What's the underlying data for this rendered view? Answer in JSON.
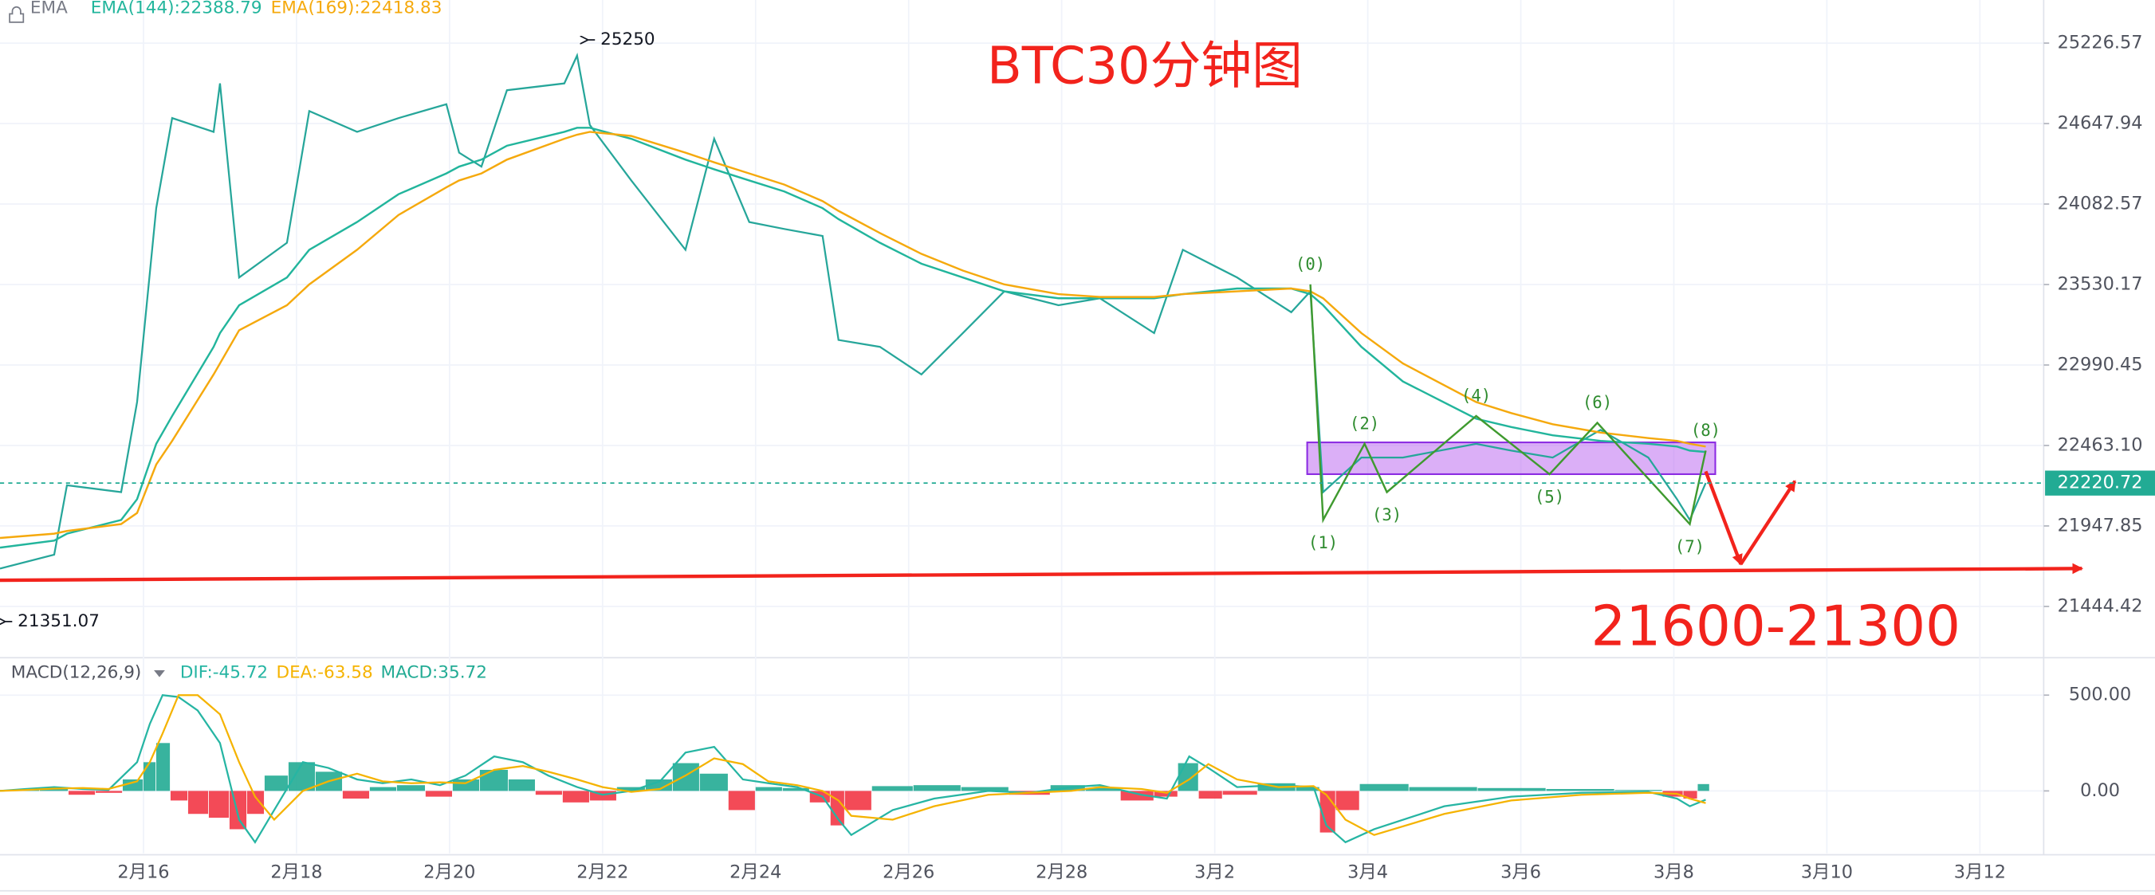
{
  "chart_data": [
    {
      "type": "line",
      "title": "BTC30分钟图",
      "indicator_label": "EMA",
      "log": true,
      "grid": true,
      "xlim": [
        "02-14 03:00",
        "03-12 20:00"
      ],
      "xticks": [
        {
          "value": "02-16 00:00",
          "label": "2月16"
        },
        {
          "value": "02-18 00:00",
          "label": "2月18"
        },
        {
          "value": "02-20 00:00",
          "label": "2月20"
        },
        {
          "value": "02-22 00:00",
          "label": "2月22"
        },
        {
          "value": "02-24 00:00",
          "label": "2月24"
        },
        {
          "value": "02-26 00:00",
          "label": "2月26"
        },
        {
          "value": "02-28 00:00",
          "label": "2月28"
        },
        {
          "value": "03-02 00:00",
          "label": "3月2"
        },
        {
          "value": "03-04 00:00",
          "label": "3月4"
        },
        {
          "value": "03-06 00:00",
          "label": "3月6"
        },
        {
          "value": "03-08 00:00",
          "label": "3月8"
        },
        {
          "value": "03-10 00:00",
          "label": "3月10"
        },
        {
          "value": "03-12 00:00",
          "label": "3月12"
        }
      ],
      "ylim": [
        21138,
        25542
      ],
      "yticks": [
        25226.57,
        24647.94,
        24082.57,
        23530.17,
        22990.45,
        {
          "value": 22463.1,
          "label": "22463.10"
        },
        21947.85,
        21444.42
      ],
      "x": [
        "02-14 03:00",
        "02-14 20:00",
        "02-15 00:00",
        "02-15 17:00",
        "02-15 22:00",
        "02-16 04:00",
        "02-16 09:00",
        "02-16 22:00",
        "02-17 00:00",
        "02-17 06:00",
        "02-17 21:00",
        "02-18 04:00",
        "02-18 19:00",
        "02-19 08:00",
        "02-19 23:00",
        "02-20 03:00",
        "02-20 10:00",
        "02-20 18:00",
        "02-21 12:00",
        "02-21 16:00",
        "02-21 20:00",
        "02-22 09:00",
        "02-23 02:00",
        "02-23 11:00",
        "02-23 22:00",
        "02-24 09:00",
        "02-24 21:00",
        "02-25 02:00",
        "02-25 15:00",
        "02-26 04:00",
        "02-26 17:00",
        "02-27 06:00",
        "02-27 23:00",
        "02-28 12:00",
        "03-01 05:00",
        "03-01 14:00",
        "03-02 07:00",
        "03-03 00:00",
        "03-03 06:00",
        "03-03 10:00",
        "03-03 22:00",
        "03-04 11:00",
        "03-05 10:00",
        "03-05 21:00",
        "03-06 10:00",
        "03-07 01:00",
        "03-07 16:00",
        "03-08 01:00",
        "03-08 05:00",
        "03-08 10:00"
      ],
      "series": [
        {
          "color": "#26a69a",
          "values": [
            21680,
            21767,
            22207,
            22163,
            22746,
            24054,
            24687,
            24589,
            24935,
            23578,
            23815,
            24737,
            24589,
            24687,
            24786,
            24442,
            24344,
            24886,
            24935,
            25136,
            24638,
            24247,
            23767,
            24540,
            23958,
            23910,
            23862,
            23157,
            23111,
            22928,
            23203,
            23484,
            23390,
            23437,
            23203,
            23767,
            23578,
            23343,
            23484,
            22163,
            22385,
            22385,
            22474,
            22430,
            22385,
            22564,
            22385,
            22118,
            21986,
            22221
          ]
        },
        {
          "name": "EMA(144):22388.79",
          "color": "#22b59c",
          "values": [
            21811,
            21855,
            21899,
            21986,
            22118,
            22474,
            22655,
            23111,
            23203,
            23390,
            23578,
            23767,
            23958,
            24151,
            24296,
            24344,
            24393,
            24491,
            24589,
            24618,
            24618,
            24540,
            24393,
            24325,
            24247,
            24170,
            24054,
            23978,
            23815,
            23672,
            23578,
            23484,
            23437,
            23437,
            23437,
            23465,
            23503,
            23503,
            23465,
            23390,
            23111,
            22882,
            22637,
            22583,
            22529,
            22493,
            22474,
            22456,
            22430,
            22421
          ]
        },
        {
          "name": "EMA(169):22418.83",
          "color": "#f5a90d",
          "values": [
            21872,
            21899,
            21916,
            21960,
            22030,
            22340,
            22493,
            22928,
            23001,
            23222,
            23390,
            23531,
            23767,
            24007,
            24199,
            24247,
            24296,
            24393,
            24540,
            24569,
            24589,
            24560,
            24442,
            24374,
            24296,
            24218,
            24103,
            24035,
            23882,
            23739,
            23625,
            23531,
            23465,
            23446,
            23446,
            23465,
            23484,
            23503,
            23484,
            23437,
            23203,
            23001,
            22746,
            22674,
            22601,
            22547,
            22511,
            22493,
            22474,
            22456
          ]
        }
      ],
      "high": {
        "x": "02-21 16:00",
        "value": 25250
      },
      "low": {
        "x": "02-14 12:00",
        "value": 21351.07
      },
      "last_price": 22220.72,
      "waves": {
        "labels": [
          "(0)",
          "(1)",
          "(2)",
          "(3)",
          "(4)",
          "(5)",
          "(6)",
          "(7)",
          "(8)"
        ],
        "x": [
          "03-03 06:00",
          "03-03 10:00",
          "03-03 23:00",
          "03-04 06:00",
          "03-05 10:00",
          "03-06 09:00",
          "03-07 00:00",
          "03-08 05:00",
          "03-08 10:00"
        ],
        "y": [
          23531,
          21986,
          22474,
          22163,
          22655,
          22278,
          22610,
          21960,
          22430
        ]
      },
      "range_box": {
        "x": [
          "03-03 05:00",
          "03-08 13:00"
        ],
        "y": [
          22483,
          22278
        ]
      },
      "support_line": {
        "x": [
          "02-14 03:00",
          "03-13 08:00"
        ],
        "y": [
          21607,
          21680
        ]
      },
      "projection": {
        "x": [
          "03-08 10:00",
          "03-08 21:00",
          "03-09 14:00"
        ],
        "y": [
          22296,
          21707,
          22233
        ]
      },
      "target_label": "21600-21300"
    },
    {
      "type": "macd",
      "title": "MACD(12,26,9)",
      "grid": true,
      "ylim": [
        -326,
        688
      ],
      "yticks": [
        {
          "value": 500,
          "label": "500.00"
        },
        {
          "value": 0,
          "label": "0.00"
        }
      ],
      "x": [
        "02-14 03:00",
        "02-14 11:00",
        "02-14 20:00",
        "02-15 05:00",
        "02-15 13:00",
        "02-15 22:00",
        "02-16 02:00",
        "02-16 06:00",
        "02-16 11:00",
        "02-16 17:00",
        "02-17 00:00",
        "02-17 06:00",
        "02-17 11:00",
        "02-17 17:00",
        "02-18 02:00",
        "02-18 10:00",
        "02-18 19:00",
        "02-19 03:00",
        "02-19 12:00",
        "02-19 21:00",
        "02-20 05:00",
        "02-20 14:00",
        "02-20 23:00",
        "02-21 07:00",
        "02-21 16:00",
        "02-22 00:00",
        "02-22 09:00",
        "02-22 18:00",
        "02-23 02:00",
        "02-23 11:00",
        "02-23 20:00",
        "02-24 04:00",
        "02-24 13:00",
        "02-24 21:00",
        "02-25 02:00",
        "02-25 06:00",
        "02-25 19:00",
        "02-26 08:00",
        "02-27 01:00",
        "02-27 14:00",
        "02-28 03:00",
        "02-28 12:00",
        "03-01 01:00",
        "03-01 09:00",
        "03-01 16:00",
        "03-01 22:00",
        "03-02 07:00",
        "03-02 20:00",
        "03-03 07:00",
        "03-03 11:00",
        "03-03 17:00",
        "03-04 02:00",
        "03-05 00:00",
        "03-05 21:00",
        "03-06 19:00",
        "03-07 16:00",
        "03-08 01:00",
        "03-08 05:00",
        "03-08 10:00"
      ],
      "series": [
        {
          "name": "DIF:-45.72",
          "style": "line",
          "color": "#26b5a3",
          "values": [
            0,
            10,
            20,
            10,
            5,
            150,
            350,
            500,
            490,
            420,
            250,
            -150,
            -268,
            -100,
            150,
            120,
            60,
            40,
            60,
            30,
            80,
            180,
            150,
            80,
            20,
            -20,
            0,
            50,
            200,
            230,
            60,
            40,
            20,
            -30,
            -150,
            -230,
            -100,
            -40,
            0,
            -10,
            20,
            30,
            -20,
            -40,
            180,
            120,
            20,
            30,
            20,
            -180,
            -268,
            -200,
            -80,
            -30,
            -10,
            -5,
            -40,
            -80,
            -45.72
          ]
        },
        {
          "name": "DEA:-63.58",
          "style": "line",
          "color": "#f5b300",
          "values": [
            0,
            5,
            12,
            15,
            10,
            50,
            150,
            300,
            500,
            500,
            400,
            150,
            -30,
            -150,
            0,
            50,
            90,
            50,
            40,
            45,
            40,
            110,
            130,
            100,
            60,
            20,
            -5,
            10,
            80,
            170,
            140,
            50,
            30,
            0,
            -50,
            -130,
            -150,
            -80,
            -20,
            -10,
            0,
            20,
            10,
            -10,
            60,
            140,
            60,
            20,
            25,
            -20,
            -150,
            -230,
            -120,
            -50,
            -20,
            -10,
            -15,
            -40,
            -63.58
          ]
        },
        {
          "name": "MACD:35.72",
          "style": "histogram",
          "color": "#22ab94",
          "negative_color": "#f23645",
          "values": [
            5,
            10,
            15,
            -20,
            -10,
            60,
            150,
            250,
            -50,
            -120,
            -140,
            -200,
            -120,
            80,
            150,
            100,
            -40,
            20,
            30,
            -30,
            60,
            110,
            60,
            -20,
            -60,
            -50,
            20,
            60,
            145,
            90,
            -100,
            20,
            15,
            -60,
            -180,
            -100,
            25,
            30,
            20,
            -20,
            30,
            15,
            -50,
            -30,
            145,
            -40,
            -20,
            40,
            20,
            -217,
            -100,
            36,
            20,
            15,
            10,
            5,
            -30,
            -40,
            35.72
          ]
        }
      ]
    }
  ]
}
